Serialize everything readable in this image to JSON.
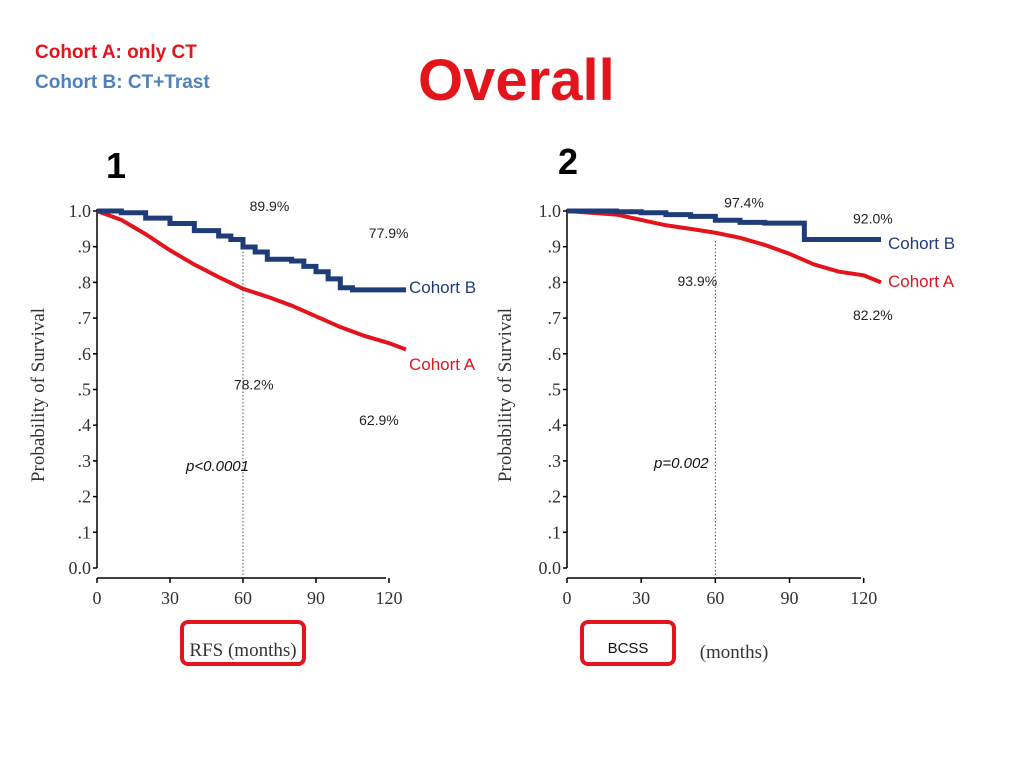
{
  "header": {
    "legend_a": "Cohort A:  only CT",
    "legend_b": "Cohort B:  CT+Trast",
    "title": "Overall"
  },
  "colors": {
    "cohort_a": "#e3141c",
    "cohort_b": "#1f3c78",
    "title": "#e3141c",
    "legend_b_text": "#4f81bd",
    "highlight_box": "#e3141c"
  },
  "chart_data": [
    {
      "type": "line",
      "panel_label": "1",
      "xlabel": "RFS (months)",
      "ylabel": "Probability of Survival",
      "xlim": [
        0,
        127
      ],
      "ylim": [
        0,
        1.0
      ],
      "xticks": [
        0,
        30,
        60,
        90,
        120
      ],
      "yticks": [
        0.0,
        0.1,
        0.2,
        0.3,
        0.4,
        0.5,
        0.6,
        0.7,
        0.8,
        0.9,
        1.0
      ],
      "ytick_labels": [
        "0.0",
        ".1",
        ".2",
        ".3",
        ".4",
        ".5",
        ".6",
        ".7",
        ".8",
        ".9",
        "1.0"
      ],
      "reference_x": 60,
      "p_value": "p<0.0001",
      "series": [
        {
          "name": "Cohort B",
          "color_key": "cohort_b",
          "step": true,
          "x": [
            0,
            10,
            20,
            30,
            40,
            50,
            55,
            60,
            65,
            70,
            80,
            85,
            90,
            95,
            100,
            105,
            110,
            115,
            120,
            127
          ],
          "y": [
            1.0,
            0.995,
            0.98,
            0.965,
            0.945,
            0.93,
            0.92,
            0.899,
            0.885,
            0.865,
            0.86,
            0.845,
            0.83,
            0.81,
            0.785,
            0.779,
            0.779,
            0.779,
            0.779,
            0.779
          ]
        },
        {
          "name": "Cohort A",
          "color_key": "cohort_a",
          "step": false,
          "x": [
            0,
            10,
            20,
            30,
            40,
            50,
            60,
            70,
            80,
            90,
            100,
            110,
            120,
            127
          ],
          "y": [
            1.0,
            0.975,
            0.935,
            0.89,
            0.85,
            0.815,
            0.782,
            0.76,
            0.735,
            0.705,
            0.675,
            0.65,
            0.63,
            0.612
          ]
        }
      ],
      "annotations": [
        {
          "text": "89.9%",
          "x": 66,
          "y": 1.0
        },
        {
          "text": "77.9%",
          "x": 115,
          "y": 0.925
        },
        {
          "text": "78.2%",
          "x": 62,
          "y": 0.5
        },
        {
          "text": "62.9%",
          "x": 111,
          "y": 0.4
        }
      ]
    },
    {
      "type": "line",
      "panel_label": "2",
      "xlabel": "BCSS",
      "xlabel_secondary": "(months)",
      "ylabel": "Probability of Survival",
      "xlim": [
        0,
        127
      ],
      "ylim": [
        0,
        1.0
      ],
      "xticks": [
        0,
        30,
        60,
        90,
        120
      ],
      "yticks": [
        0.0,
        0.1,
        0.2,
        0.3,
        0.4,
        0.5,
        0.6,
        0.7,
        0.8,
        0.9,
        1.0
      ],
      "ytick_labels": [
        "0.0",
        ".1",
        ".2",
        ".3",
        ".4",
        ".5",
        ".6",
        ".7",
        ".8",
        ".9",
        "1.0"
      ],
      "reference_x": 60,
      "p_value": "p=0.002",
      "series": [
        {
          "name": "Cohort B",
          "color_key": "cohort_b",
          "step": true,
          "x": [
            0,
            20,
            30,
            40,
            50,
            60,
            70,
            80,
            90,
            95,
            96,
            100,
            110,
            120,
            127
          ],
          "y": [
            1.0,
            0.998,
            0.995,
            0.99,
            0.985,
            0.974,
            0.968,
            0.966,
            0.966,
            0.966,
            0.92,
            0.92,
            0.92,
            0.92,
            0.92
          ]
        },
        {
          "name": "Cohort A",
          "color_key": "cohort_a",
          "step": false,
          "x": [
            0,
            20,
            30,
            40,
            50,
            60,
            70,
            80,
            90,
            100,
            110,
            120,
            127
          ],
          "y": [
            1.0,
            0.99,
            0.975,
            0.96,
            0.95,
            0.939,
            0.925,
            0.905,
            0.88,
            0.85,
            0.83,
            0.82,
            0.8
          ]
        }
      ],
      "annotations": [
        {
          "text": "97.4%",
          "x": 66,
          "y": 1.01
        },
        {
          "text": "92.0%",
          "x": 127,
          "y": 0.965
        },
        {
          "text": "93.9%",
          "x": 56,
          "y": 0.79
        },
        {
          "text": "82.2%",
          "x": 127,
          "y": 0.695
        }
      ]
    }
  ]
}
